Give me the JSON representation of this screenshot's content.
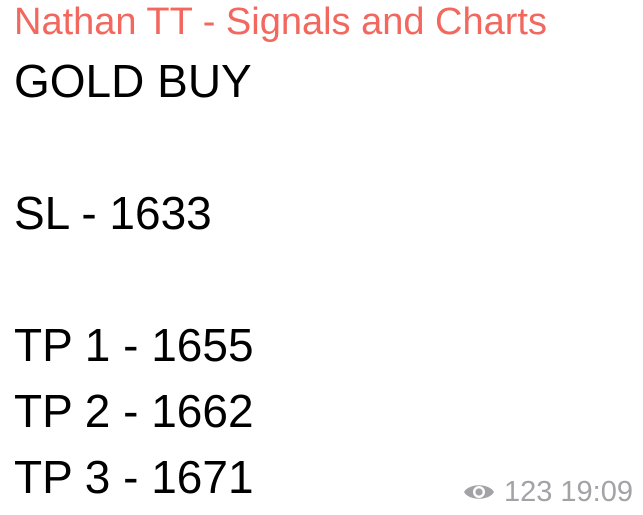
{
  "message": {
    "sender_name": "Nathan TT - Signals and Charts",
    "sender_color": "#f2675e",
    "lines": [
      "GOLD BUY",
      "",
      "SL - 1633",
      "",
      "TP 1 - 1655",
      "TP 2 - 1662",
      "TP 3 - 1671"
    ],
    "view_count": "123",
    "time": "19:09",
    "meta_icon": "eye-icon"
  }
}
